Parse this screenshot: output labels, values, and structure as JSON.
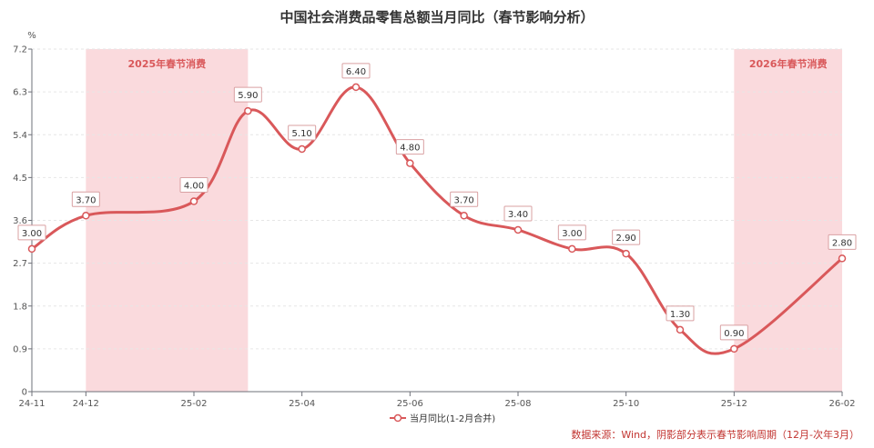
{
  "title": "中国社会消费品零售总额当月同比（春节影响分析）",
  "colors": {
    "line": "#d9585a",
    "shade": "#fadadd",
    "shade_label": "#d9585a",
    "axis": "#6e7079",
    "grid": "#e6e6e6",
    "source_text": "#c23531"
  },
  "chart_data": {
    "type": "line",
    "title": "中国社会消费品零售总额当月同比（春节影响分析）",
    "xlabel": "",
    "ylabel": "%",
    "ylim": [
      0,
      7.2
    ],
    "yticks": [
      0,
      0.9,
      1.8,
      2.7,
      3.6,
      4.5,
      5.4,
      6.3,
      7.2
    ],
    "x_months": [
      "24-11",
      "24-12",
      "25-01",
      "25-02",
      "25-03",
      "25-04",
      "25-05",
      "25-06",
      "25-07",
      "25-08",
      "25-09",
      "25-10",
      "25-11",
      "25-12",
      "26-01",
      "26-02"
    ],
    "xtick_labels": [
      "24-11",
      "24-12",
      "25-02",
      "25-04",
      "25-06",
      "25-08",
      "25-10",
      "25-12",
      "26-02"
    ],
    "series": [
      {
        "name": "当月同比(1-2月合并)",
        "points": [
          {
            "x": "24-11",
            "y": 3.0
          },
          {
            "x": "24-12",
            "y": 3.7
          },
          {
            "x": "25-02",
            "y": 4.0
          },
          {
            "x": "25-03",
            "y": 5.9
          },
          {
            "x": "25-04",
            "y": 5.1
          },
          {
            "x": "25-05",
            "y": 6.4
          },
          {
            "x": "25-06",
            "y": 4.8
          },
          {
            "x": "25-07",
            "y": 3.7
          },
          {
            "x": "25-08",
            "y": 3.4
          },
          {
            "x": "25-09",
            "y": 3.0
          },
          {
            "x": "25-10",
            "y": 2.9
          },
          {
            "x": "25-11",
            "y": 1.3
          },
          {
            "x": "25-12",
            "y": 0.9
          },
          {
            "x": "26-02",
            "y": 2.8
          }
        ]
      }
    ],
    "shaded_regions": [
      {
        "label": "2025年春节消费",
        "from": "24-12",
        "to": "25-03"
      },
      {
        "label": "2026年春节消费",
        "from": "25-12",
        "to": "26-02"
      }
    ],
    "grid": true,
    "legend_position": "bottom-center",
    "smooth": true
  },
  "legend": {
    "label": "当月同比(1-2月合并)"
  },
  "y_unit": "%",
  "source_note": "数据来源：Wind，阴影部分表示春节影响周期（12月-次年3月）"
}
